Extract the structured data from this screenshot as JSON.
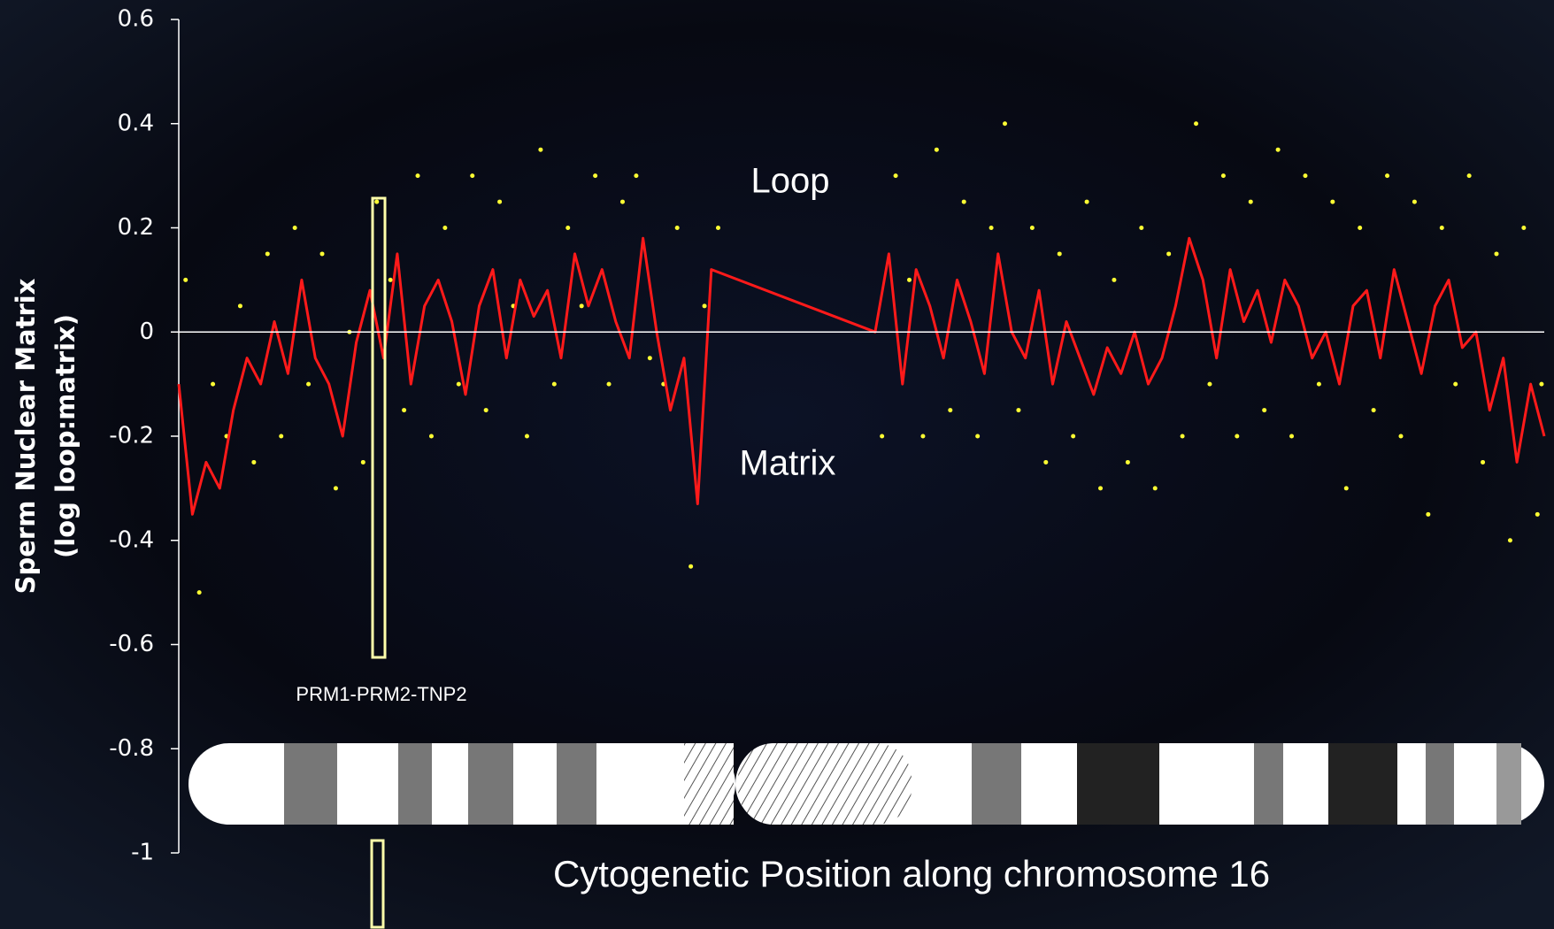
{
  "chart_data": {
    "type": "line",
    "ylabel": [
      "Sperm Nuclear Matrix",
      "(log loop:matrix)"
    ],
    "xlabel": "Cytogenetic Position along chromosome 16",
    "annotations": {
      "loop": "Loop",
      "matrix": "Matrix",
      "gene": "PRM1-PRM2-TNP2"
    },
    "ylim": [
      -1,
      0.6
    ],
    "yticks": [
      0.6,
      0.4,
      0.2,
      0,
      -0.2,
      -0.4,
      -0.6,
      -0.8,
      -1
    ],
    "xlim": [
      0,
      100
    ],
    "zero_line": true,
    "series": [
      {
        "style": "points",
        "color": "#ffff33",
        "x": [
          0.5,
          1.5,
          2.5,
          3.5,
          4.5,
          5.5,
          6.5,
          7.5,
          8.5,
          9.5,
          10.5,
          11.5,
          12.5,
          13.5,
          14.5,
          15.5,
          16.5,
          17.5,
          18.5,
          19.5,
          20.5,
          21.5,
          22.5,
          23.5,
          24.5,
          25.5,
          26.5,
          27.5,
          28.5,
          29.5,
          30.5,
          31.5,
          32.5,
          33.5,
          34.5,
          35.5,
          36.5,
          37.5,
          38.5,
          39.5,
          51.5,
          52.5,
          53.5,
          54.5,
          55.5,
          56.5,
          57.5,
          58.5,
          59.5,
          60.5,
          61.5,
          62.5,
          63.5,
          64.5,
          65.5,
          66.5,
          67.5,
          68.5,
          69.5,
          70.5,
          71.5,
          72.5,
          73.5,
          74.5,
          75.5,
          76.5,
          77.5,
          78.5,
          79.5,
          80.5,
          81.5,
          82.5,
          83.5,
          84.5,
          85.5,
          86.5,
          87.5,
          88.5,
          89.5,
          90.5,
          91.5,
          92.5,
          93.5,
          94.5,
          95.5,
          96.5,
          97.5,
          98.5,
          99.5,
          99.8
        ],
        "values": [
          0.1,
          -0.5,
          -0.1,
          -0.2,
          0.05,
          -0.25,
          0.15,
          -0.2,
          0.2,
          -0.1,
          0.15,
          -0.3,
          0.0,
          -0.25,
          0.25,
          0.1,
          -0.15,
          0.3,
          -0.2,
          0.2,
          -0.1,
          0.3,
          -0.15,
          0.25,
          0.05,
          -0.2,
          0.35,
          -0.1,
          0.2,
          0.05,
          0.3,
          -0.1,
          0.25,
          0.3,
          -0.05,
          -0.1,
          0.2,
          -0.45,
          0.05,
          0.2,
          -0.2,
          0.3,
          0.1,
          -0.2,
          0.35,
          -0.15,
          0.25,
          -0.2,
          0.2,
          0.4,
          -0.15,
          0.2,
          -0.25,
          0.15,
          -0.2,
          0.25,
          -0.3,
          0.1,
          -0.25,
          0.2,
          -0.3,
          0.15,
          -0.2,
          0.4,
          -0.1,
          0.3,
          -0.2,
          0.25,
          -0.15,
          0.35,
          -0.2,
          0.3,
          -0.1,
          0.25,
          -0.3,
          0.2,
          -0.15,
          0.3,
          -0.2,
          0.25,
          -0.35,
          0.2,
          -0.1,
          0.3,
          -0.25,
          0.15,
          -0.4,
          0.2,
          -0.35,
          -0.1
        ]
      },
      {
        "style": "line",
        "color": "#ff1a1a",
        "x": [
          0,
          1,
          2,
          3,
          4,
          5,
          6,
          7,
          8,
          9,
          10,
          11,
          12,
          13,
          14,
          15,
          16,
          17,
          18,
          19,
          20,
          21,
          22,
          23,
          24,
          25,
          26,
          27,
          28,
          29,
          30,
          31,
          32,
          33,
          34,
          35,
          36,
          37,
          38,
          39,
          51,
          52,
          53,
          54,
          55,
          56,
          57,
          58,
          59,
          60,
          61,
          62,
          63,
          64,
          65,
          66,
          67,
          68,
          69,
          70,
          71,
          72,
          73,
          74,
          75,
          76,
          77,
          78,
          79,
          80,
          81,
          82,
          83,
          84,
          85,
          86,
          87,
          88,
          89,
          90,
          91,
          92,
          93,
          94,
          95,
          96,
          97,
          98,
          99,
          100
        ],
        "values": [
          -0.1,
          -0.35,
          -0.25,
          -0.3,
          -0.15,
          -0.05,
          -0.1,
          0.02,
          -0.08,
          0.1,
          -0.05,
          -0.1,
          -0.2,
          -0.02,
          0.08,
          -0.05,
          0.15,
          -0.1,
          0.05,
          0.1,
          0.02,
          -0.12,
          0.05,
          0.12,
          -0.05,
          0.1,
          0.03,
          0.08,
          -0.05,
          0.15,
          0.05,
          0.12,
          0.02,
          -0.05,
          0.18,
          0.0,
          -0.15,
          -0.05,
          -0.33,
          0.12,
          0.0,
          0.15,
          -0.1,
          0.12,
          0.05,
          -0.05,
          0.1,
          0.02,
          -0.08,
          0.15,
          0.0,
          -0.05,
          0.08,
          -0.1,
          0.02,
          -0.05,
          -0.12,
          -0.03,
          -0.08,
          0.0,
          -0.1,
          -0.05,
          0.05,
          0.18,
          0.1,
          -0.05,
          0.12,
          0.02,
          0.08,
          -0.02,
          0.1,
          0.05,
          -0.05,
          0.0,
          -0.1,
          0.05,
          0.08,
          -0.05,
          0.12,
          0.02,
          -0.08,
          0.05,
          0.1,
          -0.03,
          0.0,
          -0.15,
          -0.05,
          -0.25,
          -0.1,
          -0.2
        ]
      }
    ]
  }
}
